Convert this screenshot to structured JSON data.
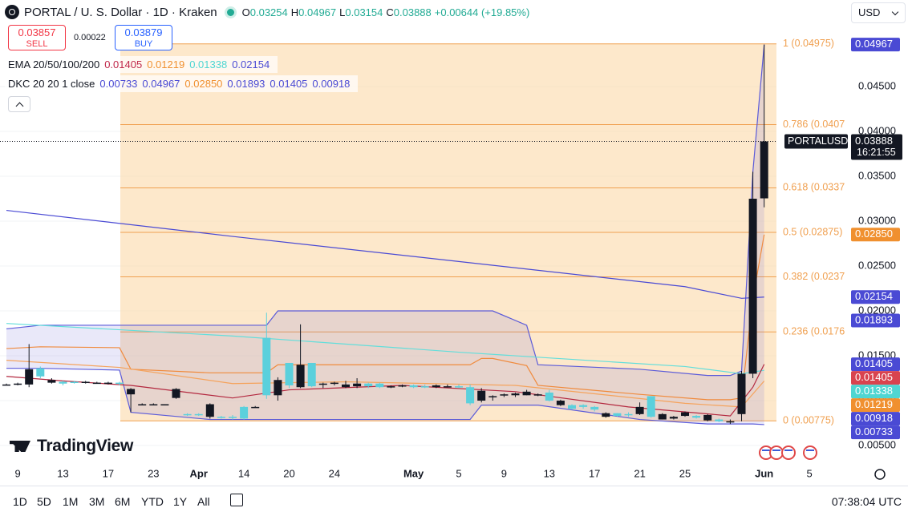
{
  "header": {
    "symbol": "PORTAL / U. S. Dollar · 1D · Kraken",
    "ohlc": [
      {
        "key": "O",
        "value": "0.03254"
      },
      {
        "key": "H",
        "value": "0.04967"
      },
      {
        "key": "L",
        "value": "0.03154"
      },
      {
        "key": "C",
        "value": "0.03888"
      }
    ],
    "change": "+0.00644 (+19.85%)",
    "sell": {
      "price": "0.03857",
      "label": "SELL"
    },
    "spread": "0.00022",
    "buy": {
      "price": "0.03879",
      "label": "BUY"
    },
    "ema": {
      "name": "EMA 20/50/100/200",
      "values": [
        {
          "text": "0.01405",
          "color": "#c0284a"
        },
        {
          "text": "0.01219",
          "color": "#f0902f"
        },
        {
          "text": "0.01338",
          "color": "#4fd6d2"
        },
        {
          "text": "0.02154",
          "color": "#4a4ad4"
        }
      ]
    },
    "dkc": {
      "name": "DKC 20 20 1 close",
      "values": [
        {
          "text": "0.00733",
          "color": "#4a4ad4"
        },
        {
          "text": "0.04967",
          "color": "#4a4ad4"
        },
        {
          "text": "0.02850",
          "color": "#f0902f"
        },
        {
          "text": "0.01893",
          "color": "#4a4ad4"
        },
        {
          "text": "0.01405",
          "color": "#4a4ad4"
        },
        {
          "text": "0.00918",
          "color": "#4a4ad4"
        }
      ]
    },
    "currency": "USD",
    "brand": "TradingView"
  },
  "chart_data": {
    "type": "candlestick",
    "title": "PORTAL / U. S. Dollar · 1D · Kraken",
    "categories": [
      null,
      "9",
      null,
      null,
      null,
      "13",
      null,
      null,
      null,
      "17",
      null,
      null,
      null,
      "23",
      null,
      null,
      null,
      "Apr",
      null,
      null,
      null,
      "14",
      null,
      null,
      null,
      "20",
      null,
      null,
      null,
      "24",
      null,
      null,
      null,
      null,
      null,
      null,
      "May",
      null,
      null,
      null,
      "5",
      null,
      null,
      null,
      "9",
      null,
      null,
      null,
      "13",
      null,
      null,
      null,
      "17",
      null,
      null,
      null,
      "21",
      null,
      null,
      null,
      "25",
      null,
      null,
      null,
      null,
      null,
      null,
      "Jun",
      null,
      null,
      null,
      "5"
    ],
    "open": [
      0.0118,
      0.0118,
      0.0118,
      0.0136,
      0.012,
      0.0121,
      0.0121,
      0.012,
      0.012,
      0.012,
      0.012,
      0.0107,
      0.0096,
      0.0096,
      0.0096,
      0.0103,
      0.0085,
      0.0085,
      0.0082,
      0.0082,
      0.0082,
      0.0093,
      0.0093,
      0.017,
      0.0106,
      0.0142,
      0.0115,
      0.0142,
      0.0118,
      0.0119,
      0.0115,
      0.0116,
      0.0119,
      0.0119,
      0.0115,
      0.0116,
      0.0117,
      0.0116,
      0.0115,
      0.0116,
      0.0116,
      0.0115,
      0.01,
      0.0104,
      0.0106,
      0.0106,
      0.0106,
      0.0106,
      0.0109,
      0.0095,
      0.0095,
      0.0095,
      0.0093,
      0.0082,
      0.0086,
      0.0085,
      0.0085,
      0.0105,
      0.0079,
      0.008,
      0.0083,
      0.0083,
      0.0078,
      0.0079,
      0.0077,
      0.0085,
      0.013,
      0.03254,
      null,
      null,
      null,
      null
    ],
    "high": [
      0.0119,
      0.012,
      0.0163,
      0.0138,
      0.0125,
      0.0122,
      0.0122,
      0.0122,
      0.0121,
      0.0121,
      0.0121,
      0.0114,
      0.0097,
      0.0097,
      0.0096,
      0.0114,
      0.0086,
      0.0086,
      0.0097,
      0.0083,
      0.0084,
      0.0094,
      0.0094,
      0.0198,
      0.0126,
      0.0142,
      0.0185,
      0.0142,
      0.012,
      0.0121,
      0.0122,
      0.0125,
      0.012,
      0.012,
      0.0117,
      0.0118,
      0.0118,
      0.0118,
      0.0118,
      0.0118,
      0.0118,
      0.0118,
      0.0114,
      0.0106,
      0.0108,
      0.0109,
      0.0112,
      0.0108,
      0.0112,
      0.0101,
      0.0096,
      0.0096,
      0.0094,
      0.0087,
      0.0086,
      0.0087,
      0.0098,
      0.0105,
      0.0086,
      0.0083,
      0.0088,
      0.0084,
      0.0085,
      0.008,
      0.0079,
      0.0133,
      0.0355,
      0.04967,
      null,
      null,
      null,
      null
    ],
    "low": [
      0.0117,
      0.0117,
      0.0115,
      0.0125,
      0.0119,
      0.0117,
      0.0119,
      0.0119,
      0.0119,
      0.0118,
      0.0117,
      0.0087,
      0.0095,
      0.0095,
      0.0095,
      0.0102,
      0.0083,
      0.0083,
      0.008,
      0.008,
      0.0079,
      0.0079,
      0.0092,
      0.0102,
      0.01,
      0.0114,
      0.0114,
      0.0115,
      0.0114,
      0.0117,
      0.0114,
      0.0114,
      0.0114,
      0.0114,
      0.0114,
      0.0115,
      0.0114,
      0.0114,
      0.0114,
      0.0115,
      0.0114,
      0.0095,
      0.0098,
      0.01,
      0.0104,
      0.0104,
      0.0106,
      0.0105,
      0.0099,
      0.0094,
      0.009,
      0.0091,
      0.0088,
      0.0081,
      0.0082,
      0.0082,
      0.0084,
      0.0081,
      0.0079,
      0.0079,
      0.0082,
      0.008,
      0.0077,
      0.0076,
      0.0074,
      0.0077,
      0.0125,
      0.03154,
      null,
      null,
      null,
      null
    ],
    "close": [
      0.0118,
      0.0119,
      0.0135,
      0.0127,
      0.0123,
      0.0119,
      0.012,
      0.0121,
      0.012,
      0.012,
      0.0119,
      0.0113,
      0.0096,
      0.0096,
      0.0096,
      0.0113,
      0.0084,
      0.0084,
      0.0096,
      0.0081,
      0.0081,
      0.008,
      0.0093,
      0.0106,
      0.0123,
      0.0117,
      0.014,
      0.0116,
      0.0119,
      0.012,
      0.0118,
      0.0119,
      0.0116,
      0.0115,
      0.0116,
      0.0117,
      0.0115,
      0.0115,
      0.0117,
      0.0116,
      0.0115,
      0.0097,
      0.0111,
      0.0105,
      0.0107,
      0.0108,
      0.011,
      0.0107,
      0.01,
      0.01,
      0.0091,
      0.0093,
      0.009,
      0.0086,
      0.0083,
      0.0084,
      0.0093,
      0.0082,
      0.0085,
      0.0082,
      0.0087,
      0.0081,
      0.0084,
      0.0077,
      0.0077,
      0.013,
      0.0325,
      0.03888,
      null,
      null,
      null,
      null
    ],
    "up_color": "#131722",
    "down_color": "#5bd0dc",
    "ylim": [
      0.00286,
      0.05464
    ],
    "yticks": [
      {
        "value": 0.045,
        "label": "0.04500"
      },
      {
        "value": 0.04,
        "label": "0.04000"
      },
      {
        "value": 0.035,
        "label": "0.03500"
      },
      {
        "value": 0.03,
        "label": "0.03000"
      },
      {
        "value": 0.025,
        "label": "0.02500"
      },
      {
        "value": 0.02,
        "label": "0.02000"
      },
      {
        "value": 0.015,
        "label": "0.01500"
      },
      {
        "value": 0.01,
        "label": "0.01000"
      },
      {
        "value": 0.005,
        "label": "0.00500"
      }
    ],
    "grid": true,
    "series": [
      {
        "color": "#4a4ad4",
        "x": [
          0,
          20,
          40,
          60,
          65,
          67
        ],
        "values": [
          0.0312,
          0.0283,
          0.0255,
          0.0227,
          0.0214,
          0.02154
        ]
      },
      {
        "color": "#62dedb",
        "x": [
          0,
          20,
          40,
          60,
          65,
          67
        ],
        "values": [
          0.0186,
          0.0172,
          0.0154,
          0.0138,
          0.013,
          0.01338
        ]
      },
      {
        "color": "#f5a35c",
        "x": [
          0,
          10,
          20,
          30,
          45,
          60,
          65,
          67
        ],
        "values": [
          0.0145,
          0.0137,
          0.0119,
          0.0121,
          0.0117,
          0.0097,
          0.0093,
          0.01219
        ]
      },
      {
        "color": "#b3283f",
        "x": [
          0,
          5,
          11,
          20,
          25,
          35,
          45,
          55,
          64,
          66,
          67
        ],
        "values": [
          0.0127,
          0.0122,
          0.0117,
          0.0103,
          0.0112,
          0.0117,
          0.011,
          0.0093,
          0.0083,
          0.0115,
          0.01405
        ]
      }
    ],
    "channel": {
      "color": "#5b5bd9",
      "basis_color": "#f08a3c",
      "fill": "rgba(120,110,220,0.16)",
      "x": [
        0,
        3,
        10,
        11,
        18,
        23,
        24,
        41,
        42,
        43,
        46,
        47,
        56,
        62,
        64,
        65,
        66,
        67
      ],
      "upper": [
        0.018,
        0.0184,
        0.0184,
        0.0184,
        0.0184,
        0.0184,
        0.02,
        0.02,
        0.02,
        0.02,
        0.0184,
        0.014,
        0.0135,
        0.0128,
        0.0128,
        0.0133,
        0.0355,
        0.04967
      ],
      "basis": [
        0.0158,
        0.016,
        0.0159,
        0.0135,
        0.0131,
        0.0131,
        0.014,
        0.014,
        0.0147,
        0.0147,
        0.0139,
        0.0117,
        0.0107,
        0.0101,
        0.0101,
        0.0103,
        0.0214,
        0.0285
      ],
      "lower": [
        0.0136,
        0.0136,
        0.0134,
        0.0087,
        0.0079,
        0.0079,
        0.0079,
        0.0079,
        0.0095,
        0.0095,
        0.0095,
        0.0095,
        0.0079,
        0.0074,
        0.0074,
        0.0074,
        0.0074,
        0.00733
      ]
    },
    "fib_color": "#f0a050",
    "fib_fill": "rgba(252,214,160,0.55)",
    "fib_levels": [
      {
        "value": 0.04975,
        "label": "1 (0.04975)"
      },
      {
        "value": 0.04076,
        "label": "0.786 (0.0407"
      },
      {
        "value": 0.03371,
        "label": "0.618 (0.0337"
      },
      {
        "value": 0.02875,
        "label": "0.5 (0.02875)"
      },
      {
        "value": 0.02379,
        "label": "0.382 (0.0237"
      },
      {
        "value": 0.01766,
        "label": "0.236 (0.0176"
      },
      {
        "value": 0.00775,
        "label": "0 (0.00775)"
      }
    ],
    "last_price": {
      "symbol": "PORTALUSD",
      "value": 0.03888,
      "label": "0.03888",
      "countdown": "16:21:55"
    },
    "price_tags": [
      {
        "value": 0.04967,
        "label": "0.04967",
        "color": "#4a4ad4"
      },
      {
        "value": 0.0285,
        "label": "0.02850",
        "color": "#f0902f"
      },
      {
        "value": 0.02154,
        "label": "0.02154",
        "color": "#4a4ad4"
      },
      {
        "value": 0.01893,
        "label": "0.01893",
        "color": "#4a4ad4"
      },
      {
        "value": 0.01405,
        "label": "0.01405",
        "color": "#4a4ad4"
      },
      {
        "value": 0.01405,
        "label": "0.01405",
        "color": "#d9434f"
      },
      {
        "value": 0.01338,
        "label": "0.01338",
        "color": "#4fd6d2"
      },
      {
        "value": 0.01219,
        "label": "0.01219",
        "color": "#f0902f"
      },
      {
        "value": 0.00918,
        "label": "0.00918",
        "color": "#4a4ad4"
      },
      {
        "value": 0.00733,
        "label": "0.00733",
        "color": "#4a4ad4"
      }
    ]
  },
  "footer": {
    "ranges": [
      "1D",
      "5D",
      "1M",
      "3M",
      "6M",
      "YTD",
      "1Y",
      "All"
    ],
    "time": "07:38:04 UTC"
  }
}
